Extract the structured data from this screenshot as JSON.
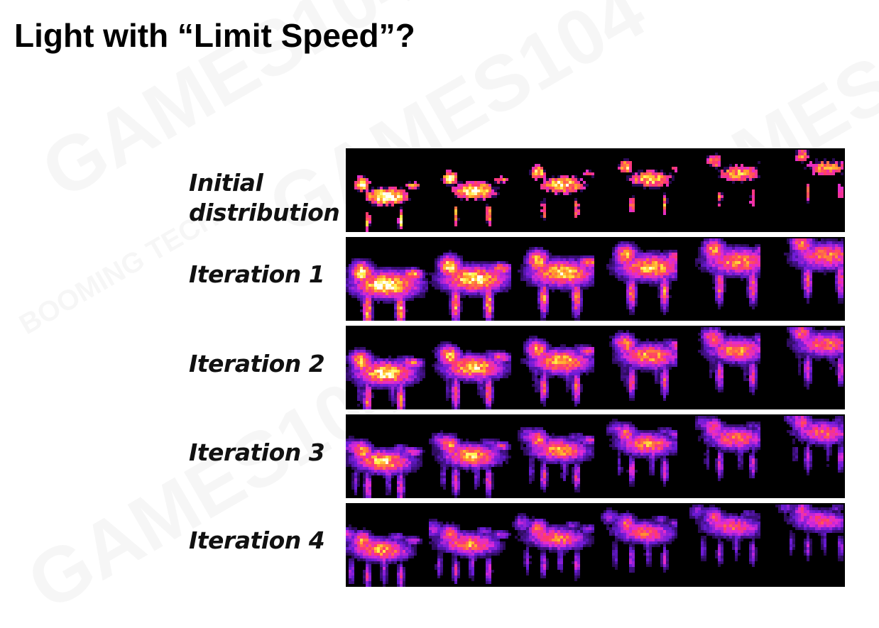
{
  "slide": {
    "title": "Light with “Limit Speed”?"
  },
  "watermark": {
    "texts": [
      "GAMES104",
      "BOOMING TECH"
    ],
    "icon": "booming-tech-logo-icon"
  },
  "figure": {
    "rows": [
      {
        "label_lines": [
          "Initial",
          "distribution"
        ],
        "iteration": 0
      },
      {
        "label_lines": [
          "Iteration 1"
        ],
        "iteration": 1
      },
      {
        "label_lines": [
          "Iteration 2"
        ],
        "iteration": 2
      },
      {
        "label_lines": [
          "Iteration 3"
        ],
        "iteration": 3
      },
      {
        "label_lines": [
          "Iteration 4"
        ],
        "iteration": 4
      }
    ],
    "frames_per_row": 6,
    "colormap": [
      "#000000",
      "#6a1bd6",
      "#e02ad8",
      "#ff3a6a",
      "#ff9a2a",
      "#fff24a",
      "#ffffff"
    ]
  }
}
